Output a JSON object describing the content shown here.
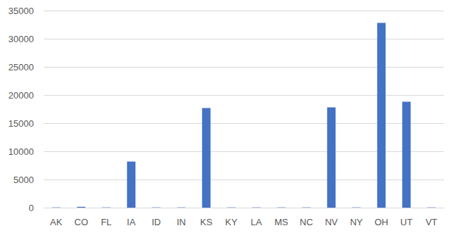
{
  "chart_data": {
    "type": "bar",
    "categories": [
      "AK",
      "CO",
      "FL",
      "IA",
      "ID",
      "IN",
      "KS",
      "KY",
      "LA",
      "MS",
      "NC",
      "NV",
      "NY",
      "OH",
      "UT",
      "VT"
    ],
    "values": [
      50,
      150,
      50,
      8200,
      50,
      50,
      17700,
      50,
      50,
      50,
      50,
      17800,
      50,
      32800,
      18800,
      50
    ],
    "color": "#4472c4",
    "ylim": [
      0,
      35000
    ],
    "yticks": [
      0,
      5000,
      10000,
      15000,
      20000,
      25000,
      30000,
      35000
    ],
    "grid": true
  }
}
